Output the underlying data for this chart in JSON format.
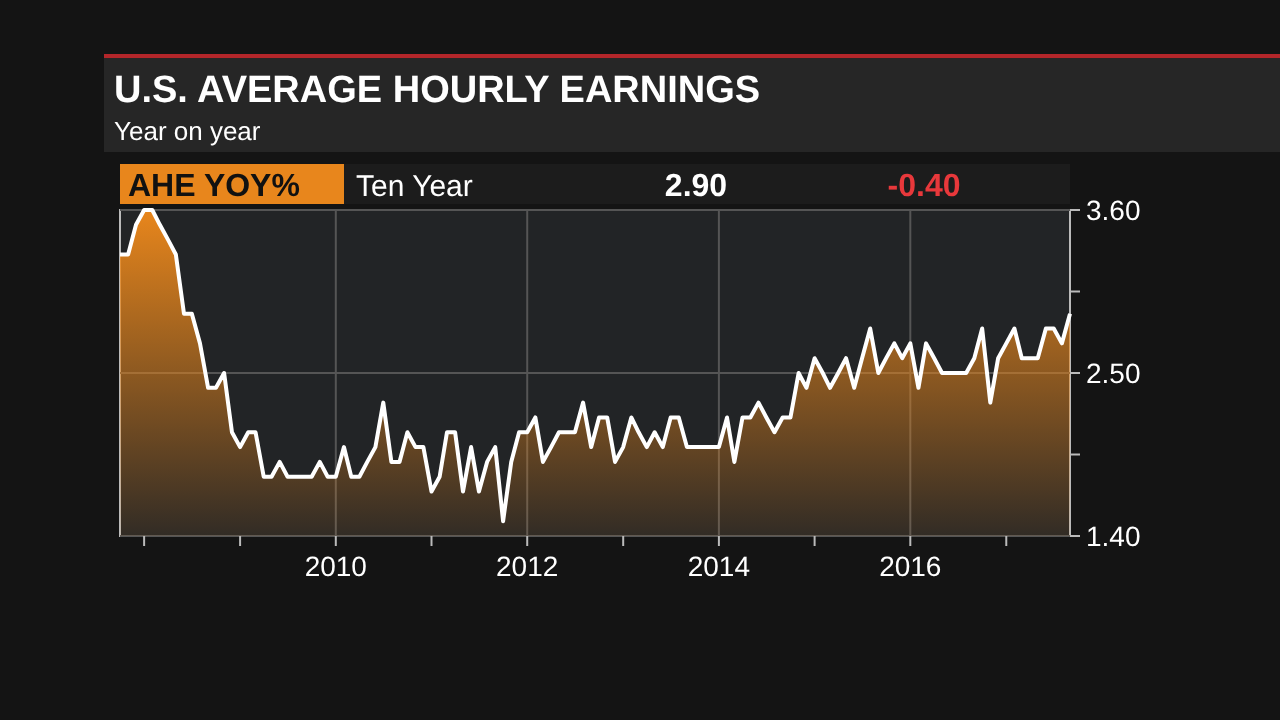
{
  "chart_data": {
    "type": "area",
    "title": "U.S. AVERAGE HOURLY EARNINGS",
    "subtitle": "Year on year",
    "annotations": [
      "Ten Year",
      "2.90",
      "-0.40"
    ],
    "x": [
      "2007-10",
      "2007-11",
      "2007-12",
      "2008-01",
      "2008-02",
      "2008-03",
      "2008-04",
      "2008-05",
      "2008-06",
      "2008-07",
      "2008-08",
      "2008-09",
      "2008-10",
      "2008-11",
      "2008-12",
      "2009-01",
      "2009-02",
      "2009-03",
      "2009-04",
      "2009-05",
      "2009-06",
      "2009-07",
      "2009-08",
      "2009-09",
      "2009-10",
      "2009-11",
      "2009-12",
      "2010-01",
      "2010-02",
      "2010-03",
      "2010-04",
      "2010-05",
      "2010-06",
      "2010-07",
      "2010-08",
      "2010-09",
      "2010-10",
      "2010-11",
      "2010-12",
      "2011-01",
      "2011-02",
      "2011-03",
      "2011-04",
      "2011-05",
      "2011-06",
      "2011-07",
      "2011-08",
      "2011-09",
      "2011-10",
      "2011-11",
      "2011-12",
      "2012-01",
      "2012-02",
      "2012-03",
      "2012-04",
      "2012-05",
      "2012-06",
      "2012-07",
      "2012-08",
      "2012-09",
      "2012-10",
      "2012-11",
      "2012-12",
      "2013-01",
      "2013-02",
      "2013-03",
      "2013-04",
      "2013-05",
      "2013-06",
      "2013-07",
      "2013-08",
      "2013-09",
      "2013-10",
      "2013-11",
      "2013-12",
      "2014-01",
      "2014-02",
      "2014-03",
      "2014-04",
      "2014-05",
      "2014-06",
      "2014-07",
      "2014-08",
      "2014-09",
      "2014-10",
      "2014-11",
      "2014-12",
      "2015-01",
      "2015-02",
      "2015-03",
      "2015-04",
      "2015-05",
      "2015-06",
      "2015-07",
      "2015-08",
      "2015-09",
      "2015-10",
      "2015-11",
      "2015-12",
      "2016-01",
      "2016-02",
      "2016-03",
      "2016-04",
      "2016-05",
      "2016-06",
      "2016-07",
      "2016-08",
      "2016-09",
      "2016-10",
      "2016-11",
      "2016-12",
      "2017-01",
      "2017-02",
      "2017-03",
      "2017-04",
      "2017-05",
      "2017-06",
      "2017-07",
      "2017-08",
      "2017-09"
    ],
    "series": [
      {
        "name": "AHE YOY%",
        "color": "#e8861c",
        "values": [
          3.3,
          3.3,
          3.5,
          3.6,
          3.6,
          3.5,
          3.4,
          3.3,
          2.9,
          2.9,
          2.7,
          2.4,
          2.4,
          2.5,
          2.1,
          2.0,
          2.1,
          2.1,
          1.8,
          1.8,
          1.9,
          1.8,
          1.8,
          1.8,
          1.8,
          1.9,
          1.8,
          1.8,
          2.0,
          1.8,
          1.8,
          1.9,
          2.0,
          2.3,
          1.9,
          1.9,
          2.1,
          2.0,
          2.0,
          1.7,
          1.8,
          2.1,
          2.1,
          1.7,
          2.0,
          1.7,
          1.9,
          2.0,
          1.5,
          1.9,
          2.1,
          2.1,
          2.2,
          1.9,
          2.0,
          2.1,
          2.1,
          2.1,
          2.3,
          2.0,
          2.2,
          2.2,
          1.9,
          2.0,
          2.2,
          2.1,
          2.0,
          2.1,
          2.0,
          2.2,
          2.2,
          2.0,
          2.0,
          2.0,
          2.0,
          2.0,
          2.2,
          1.9,
          2.2,
          2.2,
          2.3,
          2.2,
          2.1,
          2.2,
          2.2,
          2.5,
          2.4,
          2.6,
          2.5,
          2.4,
          2.5,
          2.6,
          2.4,
          2.6,
          2.8,
          2.5,
          2.6,
          2.7,
          2.6,
          2.7,
          2.4,
          2.7,
          2.6,
          2.5,
          2.5,
          2.5,
          2.5,
          2.6,
          2.8,
          2.3,
          2.6,
          2.7,
          2.8,
          2.6,
          2.6,
          2.6,
          2.8,
          2.8,
          2.7,
          2.9
        ]
      }
    ],
    "xlim": [
      "2007-10",
      "2017-09"
    ],
    "xticks": [
      {
        "value": "2008",
        "label": null
      },
      {
        "value": "2009",
        "label": null
      },
      {
        "value": "2010",
        "label": "2010"
      },
      {
        "value": "2011",
        "label": null
      },
      {
        "value": "2012",
        "label": "2012"
      },
      {
        "value": "2013",
        "label": null
      },
      {
        "value": "2014",
        "label": "2014"
      },
      {
        "value": "2015",
        "label": null
      },
      {
        "value": "2016",
        "label": "2016"
      },
      {
        "value": "2017",
        "label": null
      }
    ],
    "ylim": [
      1.4,
      3.6
    ],
    "yticks": [
      {
        "value": 1.4,
        "label": "1.40"
      },
      {
        "value": 1.95,
        "label": null
      },
      {
        "value": 2.5,
        "label": "2.50"
      },
      {
        "value": 3.05,
        "label": null
      },
      {
        "value": 3.6,
        "label": "3.60"
      }
    ],
    "grid": true,
    "legend": "top left"
  }
}
